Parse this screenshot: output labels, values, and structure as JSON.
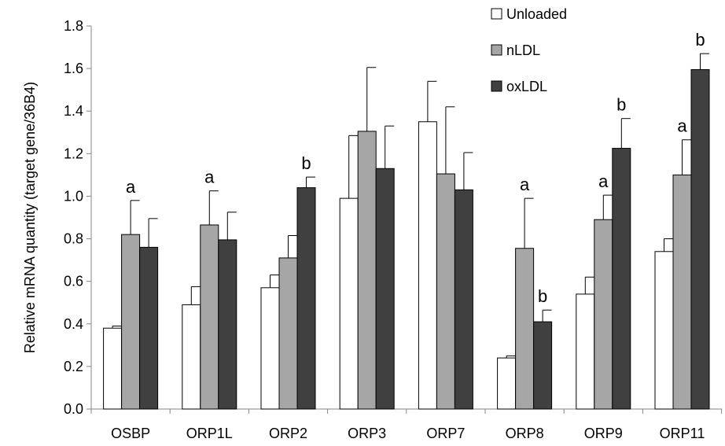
{
  "chart_data": {
    "type": "bar",
    "title": "",
    "xlabel": "",
    "ylabel": "Relative mRNA quantity (target  gene/36B4)",
    "ylim": [
      0,
      1.8
    ],
    "yticks": [
      "0.0",
      "0.2",
      "0.4",
      "0.6",
      "0.8",
      "1.0",
      "1.2",
      "1.4",
      "1.6",
      "1.8"
    ],
    "grid": false,
    "legend_position": "top-right",
    "categories": [
      "OSBP",
      "ORP1L",
      "ORP2",
      "ORP3",
      "ORP7",
      "ORP8",
      "ORP9",
      "ORP11"
    ],
    "series": [
      {
        "name": "Unloaded",
        "color": "#ffffff",
        "values": [
          0.38,
          0.49,
          0.57,
          0.99,
          1.35,
          0.24,
          0.54,
          0.74
        ],
        "errors": [
          0.01,
          0.085,
          0.06,
          0.295,
          0.19,
          0.01,
          0.08,
          0.06
        ],
        "annotations": [
          "",
          "",
          "",
          "",
          "",
          "",
          "",
          ""
        ]
      },
      {
        "name": "nLDL",
        "color": "#a6a6a6",
        "values": [
          0.82,
          0.865,
          0.71,
          1.305,
          1.105,
          0.755,
          0.89,
          1.1
        ],
        "errors": [
          0.16,
          0.16,
          0.105,
          0.3,
          0.315,
          0.235,
          0.115,
          0.165
        ],
        "annotations": [
          "a",
          "a",
          "",
          "",
          "",
          "a",
          "a",
          "a"
        ]
      },
      {
        "name": "oxLDL",
        "color": "#404040",
        "values": [
          0.76,
          0.795,
          1.04,
          1.13,
          1.03,
          0.41,
          1.225,
          1.595
        ],
        "errors": [
          0.135,
          0.13,
          0.05,
          0.2,
          0.175,
          0.055,
          0.14,
          0.075
        ],
        "annotations": [
          "",
          "",
          "b",
          "",
          "",
          "b",
          "b",
          "b"
        ]
      }
    ]
  }
}
